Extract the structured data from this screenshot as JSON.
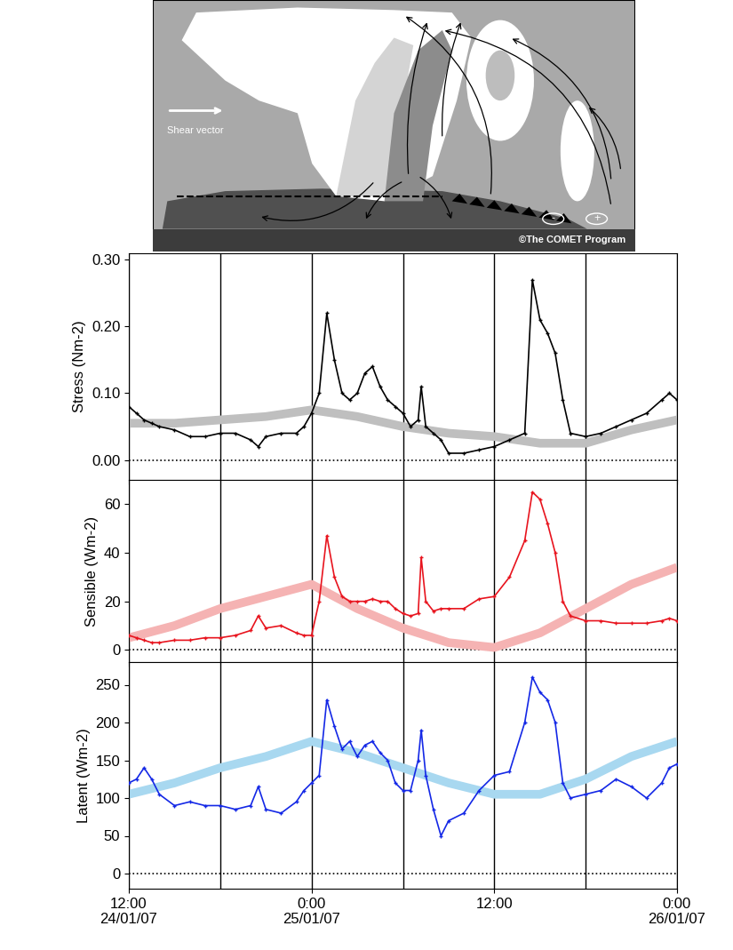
{
  "diagram": {
    "shear_label": "Shear vector",
    "credit": "©The COMET Program",
    "minus": "-",
    "plus": "+"
  },
  "chart_data": [
    {
      "type": "line",
      "ylabel": "Stress (Nm-2)",
      "tick_labels": "y",
      "grid": true,
      "xlim": [
        0,
        36
      ],
      "xticks": [
        {
          "value": 0,
          "label": "12:00\n24/01/07"
        },
        {
          "value": 12,
          "label": "0:00\n25/01/07"
        },
        {
          "value": 24,
          "label": "12:00"
        },
        {
          "value": 36,
          "label": "0:00\n26/01/07"
        }
      ],
      "ylim": [
        -0.03,
        0.31
      ],
      "yticks": [
        {
          "value": 0,
          "label": "0.00"
        },
        {
          "value": 0.1,
          "label": "0.10"
        },
        {
          "value": 0.2,
          "label": "0.20"
        },
        {
          "value": 0.3,
          "label": "0.30"
        }
      ],
      "series": [
        {
          "color": "#bfbfbf",
          "line_style": "solid",
          "x": [
            0,
            3,
            6,
            9,
            12,
            15,
            18,
            21,
            24,
            27,
            30,
            33,
            36
          ],
          "values": [
            0.055,
            0.055,
            0.06,
            0.065,
            0.075,
            0.065,
            0.05,
            0.04,
            0.035,
            0.025,
            0.025,
            0.045,
            0.06
          ]
        },
        {
          "color": "#000000",
          "line_style": "solid",
          "marker": "+",
          "x": [
            0,
            0.5,
            1,
            1.5,
            2,
            3,
            4,
            5,
            6,
            7,
            8,
            8.5,
            9,
            10,
            11,
            11.5,
            12,
            12.5,
            13,
            13.5,
            14,
            14.5,
            15,
            15.5,
            16,
            16.5,
            17,
            17.5,
            18,
            18.5,
            19,
            19.2,
            19.5,
            20,
            20.5,
            21,
            22,
            23,
            24,
            25,
            26,
            26.5,
            27,
            27.5,
            28,
            28.5,
            29,
            30,
            31,
            32,
            33,
            34,
            35,
            35.5,
            36
          ],
          "values": [
            0.08,
            0.07,
            0.06,
            0.055,
            0.05,
            0.045,
            0.035,
            0.035,
            0.04,
            0.04,
            0.03,
            0.02,
            0.035,
            0.04,
            0.04,
            0.05,
            0.07,
            0.1,
            0.22,
            0.15,
            0.1,
            0.09,
            0.1,
            0.13,
            0.14,
            0.11,
            0.09,
            0.08,
            0.07,
            0.05,
            0.06,
            0.11,
            0.05,
            0.04,
            0.03,
            0.01,
            0.01,
            0.015,
            0.02,
            0.03,
            0.04,
            0.27,
            0.21,
            0.19,
            0.16,
            0.09,
            0.04,
            0.035,
            0.04,
            0.05,
            0.06,
            0.07,
            0.09,
            0.1,
            0.09
          ]
        }
      ]
    },
    {
      "type": "line",
      "ylabel": "Sensible (Wm-2)",
      "tick_labels": "y",
      "grid": true,
      "xlim": [
        0,
        36
      ],
      "xticks": [
        {
          "value": 0,
          "label": "12:00\n24/01/07"
        },
        {
          "value": 12,
          "label": "0:00\n25/01/07"
        },
        {
          "value": 24,
          "label": "12:00"
        },
        {
          "value": 36,
          "label": "0:00\n26/01/07"
        }
      ],
      "ylim": [
        -5,
        70
      ],
      "yticks": [
        0,
        20,
        40,
        60
      ],
      "series": [
        {
          "color": "#f5b3b3",
          "line_style": "solid",
          "x": [
            0,
            3,
            6,
            9,
            12,
            15,
            18,
            21,
            24,
            27,
            30,
            33,
            36
          ],
          "values": [
            5,
            10,
            17,
            22,
            27,
            17,
            9,
            3,
            1,
            7,
            17,
            27,
            34
          ]
        },
        {
          "color": "#e8141e",
          "line_style": "solid",
          "marker": "+",
          "x": [
            0,
            0.5,
            1,
            1.5,
            2,
            3,
            4,
            5,
            6,
            7,
            8,
            8.5,
            9,
            10,
            11,
            11.5,
            12,
            12.5,
            13,
            13.5,
            14,
            14.5,
            15,
            15.5,
            16,
            16.5,
            17,
            17.5,
            18,
            18.5,
            19,
            19.2,
            19.5,
            20,
            20.5,
            21,
            22,
            23,
            24,
            25,
            26,
            26.5,
            27,
            27.5,
            28,
            28.5,
            29,
            30,
            31,
            32,
            33,
            34,
            35,
            35.5,
            36
          ],
          "values": [
            6,
            5,
            4,
            3,
            3,
            4,
            4,
            5,
            5,
            6,
            8,
            14,
            9,
            10,
            7,
            6,
            6,
            20,
            47,
            30,
            22,
            20,
            20,
            20,
            21,
            20,
            20,
            17,
            15,
            14,
            15,
            38,
            20,
            16,
            17,
            17,
            17,
            21,
            22,
            30,
            45,
            65,
            62,
            52,
            40,
            20,
            14,
            12,
            12,
            11,
            11,
            11,
            12,
            13,
            12
          ]
        }
      ]
    },
    {
      "type": "line",
      "ylabel": "Latent (Wm-2)",
      "tick_labels": true,
      "grid": true,
      "xlim": [
        0,
        36
      ],
      "xticks": [
        {
          "value": 0,
          "label": "12:00\n24/01/07"
        },
        {
          "value": 12,
          "label": "0:00\n25/01/07"
        },
        {
          "value": 24,
          "label": "12:00"
        },
        {
          "value": 36,
          "label": "0:00\n26/01/07"
        }
      ],
      "ylim": [
        -20,
        280
      ],
      "yticks": [
        0,
        50,
        100,
        150,
        200,
        250
      ],
      "series": [
        {
          "color": "#a8d8f0",
          "line_style": "solid",
          "x": [
            0,
            3,
            6,
            9,
            12,
            15,
            18,
            21,
            24,
            27,
            30,
            33,
            36
          ],
          "values": [
            105,
            120,
            140,
            155,
            175,
            160,
            140,
            120,
            105,
            105,
            125,
            155,
            175
          ]
        },
        {
          "color": "#1428e6",
          "line_style": "solid",
          "marker": "+",
          "x": [
            0,
            0.5,
            1,
            1.5,
            2,
            3,
            4,
            5,
            6,
            7,
            8,
            8.5,
            9,
            10,
            11,
            11.5,
            12,
            12.5,
            13,
            13.5,
            14,
            14.5,
            15,
            15.5,
            16,
            16.5,
            17,
            17.5,
            18,
            18.5,
            19,
            19.2,
            19.5,
            20,
            20.5,
            21,
            22,
            23,
            24,
            25,
            26,
            26.5,
            27,
            27.5,
            28,
            28.5,
            29,
            30,
            31,
            32,
            33,
            34,
            35,
            35.5,
            36
          ],
          "values": [
            120,
            125,
            140,
            125,
            105,
            90,
            95,
            90,
            90,
            85,
            90,
            115,
            85,
            80,
            95,
            110,
            120,
            130,
            230,
            195,
            165,
            175,
            155,
            170,
            175,
            160,
            150,
            120,
            110,
            110,
            150,
            190,
            130,
            85,
            50,
            70,
            80,
            110,
            130,
            135,
            200,
            260,
            240,
            230,
            200,
            120,
            100,
            105,
            110,
            125,
            115,
            100,
            120,
            140,
            145
          ]
        }
      ]
    }
  ]
}
